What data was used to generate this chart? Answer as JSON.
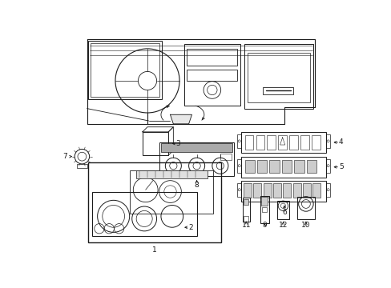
{
  "bg_color": "#ffffff",
  "line_color": "#1a1a1a",
  "figsize": [
    4.89,
    3.6
  ],
  "dpi": 100,
  "font_size": 6.5
}
